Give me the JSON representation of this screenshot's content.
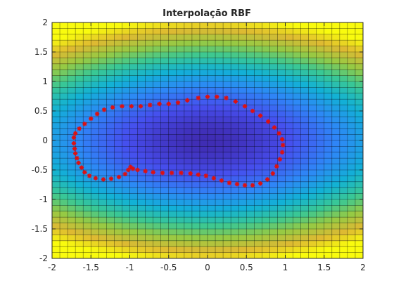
{
  "chart_data": {
    "type": "heatmap",
    "title": "Interpolação RBF",
    "xlabel": "",
    "ylabel": "",
    "xlim": [
      -2,
      2
    ],
    "ylim": [
      -2,
      2
    ],
    "grid": true,
    "x_ticks": [
      -2,
      -1.5,
      -1,
      -0.5,
      0,
      0.5,
      1,
      1.5,
      2
    ],
    "y_ticks": [
      -2,
      -1.5,
      -1,
      -0.5,
      0,
      0.5,
      1,
      1.5,
      2
    ],
    "x_tick_labels": [
      "-2",
      "-1.5",
      "-1",
      "-0.5",
      "0",
      "0.5",
      "1",
      "1.5",
      "2"
    ],
    "y_tick_labels": [
      "-2",
      "-1.5",
      "-1",
      "-0.5",
      "0",
      "0.5",
      "1",
      "1.5",
      "2"
    ],
    "colormap": "parula",
    "surface": {
      "type": "rbf-interpolated surface",
      "x_range": [
        -2,
        2
      ],
      "y_range": [
        -2,
        2
      ],
      "mesh_step": 0.1,
      "minimum_region": "inside contour (about x 0.0, y 0.0)",
      "maximum_region": "corners"
    },
    "contour_series": {
      "color": "#dd1111",
      "marker": "asterisk",
      "points": [
        [
          -1.72,
          -0.05
        ],
        [
          -1.72,
          0.05
        ],
        [
          -1.7,
          0.12
        ],
        [
          -1.65,
          0.2
        ],
        [
          -1.58,
          0.28
        ],
        [
          -1.5,
          0.37
        ],
        [
          -1.42,
          0.45
        ],
        [
          -1.33,
          0.52
        ],
        [
          -1.22,
          0.56
        ],
        [
          -1.1,
          0.58
        ],
        [
          -0.98,
          0.58
        ],
        [
          -0.86,
          0.58
        ],
        [
          -0.74,
          0.6
        ],
        [
          -0.62,
          0.62
        ],
        [
          -0.5,
          0.62
        ],
        [
          -0.38,
          0.64
        ],
        [
          -0.26,
          0.68
        ],
        [
          -0.12,
          0.72
        ],
        [
          0.0,
          0.74
        ],
        [
          0.12,
          0.74
        ],
        [
          0.24,
          0.72
        ],
        [
          0.36,
          0.66
        ],
        [
          0.48,
          0.58
        ],
        [
          0.58,
          0.5
        ],
        [
          0.68,
          0.42
        ],
        [
          0.78,
          0.32
        ],
        [
          0.86,
          0.22
        ],
        [
          0.92,
          0.12
        ],
        [
          0.96,
          0.02
        ],
        [
          0.97,
          -0.08
        ],
        [
          0.96,
          -0.2
        ],
        [
          0.93,
          -0.32
        ],
        [
          0.89,
          -0.44
        ],
        [
          0.84,
          -0.56
        ],
        [
          0.77,
          -0.66
        ],
        [
          0.68,
          -0.73
        ],
        [
          0.58,
          -0.76
        ],
        [
          0.48,
          -0.76
        ],
        [
          0.38,
          -0.74
        ],
        [
          0.28,
          -0.72
        ],
        [
          0.18,
          -0.68
        ],
        [
          0.08,
          -0.64
        ],
        [
          -0.02,
          -0.6
        ],
        [
          -0.12,
          -0.58
        ],
        [
          -0.22,
          -0.56
        ],
        [
          -0.34,
          -0.55
        ],
        [
          -0.46,
          -0.55
        ],
        [
          -0.58,
          -0.55
        ],
        [
          -0.7,
          -0.54
        ],
        [
          -0.8,
          -0.52
        ],
        [
          -0.9,
          -0.5
        ],
        [
          -0.96,
          -0.48
        ],
        [
          -0.99,
          -0.45
        ],
        [
          -1.02,
          -0.5
        ],
        [
          -1.06,
          -0.57
        ],
        [
          -1.14,
          -0.62
        ],
        [
          -1.24,
          -0.65
        ],
        [
          -1.34,
          -0.66
        ],
        [
          -1.44,
          -0.64
        ],
        [
          -1.52,
          -0.6
        ],
        [
          -1.58,
          -0.54
        ],
        [
          -1.62,
          -0.46
        ],
        [
          -1.66,
          -0.38
        ],
        [
          -1.68,
          -0.3
        ],
        [
          -1.7,
          -0.22
        ],
        [
          -1.71,
          -0.14
        ]
      ]
    }
  }
}
